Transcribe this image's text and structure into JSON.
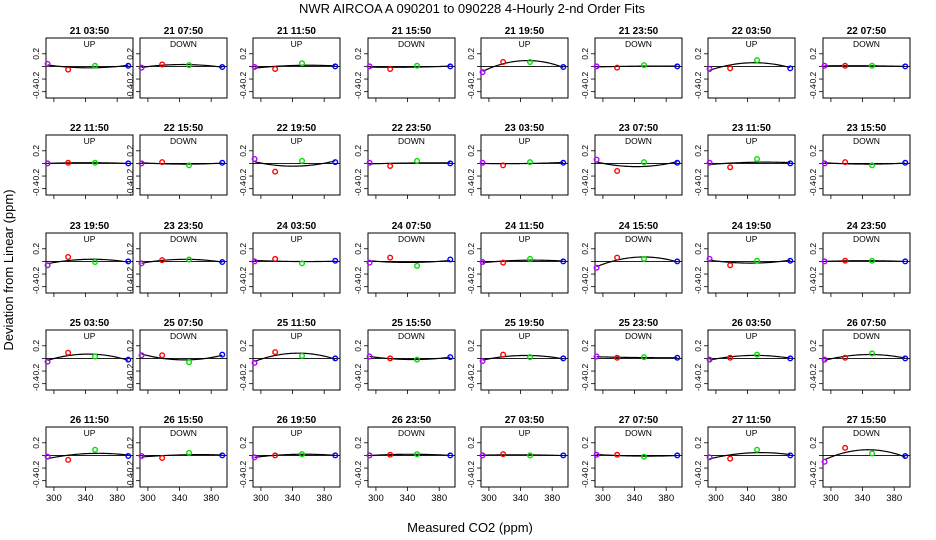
{
  "chart_data": {
    "type": "scatter",
    "title": "NWR   AIRCOA A   090201 to 090228   4-Hourly 2-nd Order Fits",
    "xlabel": "Measured CO2 (ppm)",
    "ylabel": "Deviation from Linear (ppm)",
    "xlim": [
      290,
      400
    ],
    "ylim": [
      -0.5,
      0.45
    ],
    "x_ticks": [
      "300",
      "340",
      "380"
    ],
    "x_tick_values": [
      300,
      340,
      380
    ],
    "y_ticks": [
      "0.2",
      "-0.2",
      "-0.4"
    ],
    "y_tick_values": [
      0.2,
      -0.2,
      -0.4
    ],
    "extra_y_tick": 0,
    "standard_x": [
      292,
      318,
      352,
      394
    ],
    "standard_colors": [
      "#b000ff",
      "#ff0000",
      "#00dd00",
      "#0000ff"
    ],
    "curve_color": "#000000",
    "panels": [
      {
        "title": "21 03:50",
        "direction": "UP",
        "y": [
          0.04,
          -0.05,
          0.01,
          0.01
        ]
      },
      {
        "title": "21 07:50",
        "direction": "DOWN",
        "y": [
          -0.02,
          0.03,
          0.02,
          -0.01
        ]
      },
      {
        "title": "21 11:50",
        "direction": "UP",
        "y": [
          -0.01,
          -0.04,
          0.05,
          0.0
        ]
      },
      {
        "title": "21 15:50",
        "direction": "DOWN",
        "y": [
          0.0,
          -0.04,
          0.01,
          0.0
        ]
      },
      {
        "title": "21 19:50",
        "direction": "UP",
        "y": [
          -0.09,
          0.07,
          0.07,
          -0.01
        ]
      },
      {
        "title": "21 23:50",
        "direction": "DOWN",
        "y": [
          0.0,
          -0.02,
          0.02,
          0.0
        ]
      },
      {
        "title": "22 03:50",
        "direction": "UP",
        "y": [
          -0.04,
          -0.03,
          0.1,
          -0.03
        ]
      },
      {
        "title": "22 07:50",
        "direction": "DOWN",
        "y": [
          0.01,
          0.01,
          0.01,
          0.0
        ]
      },
      {
        "title": "22 11:50",
        "direction": "UP",
        "y": [
          0.0,
          0.01,
          0.01,
          0.0
        ]
      },
      {
        "title": "22 15:50",
        "direction": "DOWN",
        "y": [
          0.0,
          0.02,
          -0.03,
          0.01
        ]
      },
      {
        "title": "22 19:50",
        "direction": "UP",
        "y": [
          0.07,
          -0.13,
          0.04,
          0.02
        ]
      },
      {
        "title": "22 23:50",
        "direction": "DOWN",
        "y": [
          0.01,
          -0.04,
          0.04,
          0.0
        ]
      },
      {
        "title": "23 03:50",
        "direction": "UP",
        "y": [
          0.01,
          -0.03,
          0.02,
          0.01
        ]
      },
      {
        "title": "23 07:50",
        "direction": "DOWN",
        "y": [
          0.06,
          -0.12,
          0.02,
          0.01
        ]
      },
      {
        "title": "23 11:50",
        "direction": "UP",
        "y": [
          0.01,
          -0.06,
          0.07,
          0.0
        ]
      },
      {
        "title": "23 15:50",
        "direction": "DOWN",
        "y": [
          0.0,
          0.02,
          -0.03,
          0.01
        ]
      },
      {
        "title": "23 19:50",
        "direction": "UP",
        "y": [
          -0.06,
          0.07,
          -0.01,
          0.0
        ]
      },
      {
        "title": "23 23:50",
        "direction": "DOWN",
        "y": [
          -0.03,
          0.02,
          0.03,
          -0.01
        ]
      },
      {
        "title": "24 03:50",
        "direction": "UP",
        "y": [
          0.0,
          0.04,
          -0.03,
          0.01
        ]
      },
      {
        "title": "24 07:50",
        "direction": "DOWN",
        "y": [
          -0.02,
          0.06,
          -0.07,
          0.03
        ]
      },
      {
        "title": "24 11:50",
        "direction": "UP",
        "y": [
          -0.01,
          -0.02,
          0.04,
          0.0
        ]
      },
      {
        "title": "24 15:50",
        "direction": "DOWN",
        "y": [
          -0.1,
          0.06,
          0.04,
          0.0
        ]
      },
      {
        "title": "24 19:50",
        "direction": "UP",
        "y": [
          0.04,
          -0.06,
          0.01,
          0.01
        ]
      },
      {
        "title": "24 23:50",
        "direction": "DOWN",
        "y": [
          0.0,
          0.01,
          0.01,
          0.0
        ]
      },
      {
        "title": "25 03:50",
        "direction": "UP",
        "y": [
          -0.05,
          0.09,
          0.03,
          -0.02
        ]
      },
      {
        "title": "25 07:50",
        "direction": "DOWN",
        "y": [
          0.05,
          0.05,
          -0.06,
          0.06
        ]
      },
      {
        "title": "25 11:50",
        "direction": "UP",
        "y": [
          -0.07,
          0.1,
          0.04,
          0.0
        ]
      },
      {
        "title": "25 15:50",
        "direction": "DOWN",
        "y": [
          0.03,
          0.0,
          -0.02,
          0.02
        ]
      },
      {
        "title": "25 19:50",
        "direction": "UP",
        "y": [
          -0.04,
          0.06,
          0.02,
          0.0
        ]
      },
      {
        "title": "25 23:50",
        "direction": "DOWN",
        "y": [
          0.03,
          0.01,
          0.02,
          0.01
        ]
      },
      {
        "title": "26 03:50",
        "direction": "UP",
        "y": [
          -0.02,
          0.01,
          0.06,
          0.0
        ]
      },
      {
        "title": "26 07:50",
        "direction": "DOWN",
        "y": [
          -0.02,
          0.01,
          0.08,
          0.0
        ]
      },
      {
        "title": "26 11:50",
        "direction": "UP",
        "y": [
          -0.02,
          -0.07,
          0.09,
          -0.01
        ]
      },
      {
        "title": "26 15:50",
        "direction": "DOWN",
        "y": [
          -0.01,
          -0.04,
          0.04,
          0.0
        ]
      },
      {
        "title": "26 19:50",
        "direction": "UP",
        "y": [
          -0.03,
          0.0,
          0.02,
          0.0
        ]
      },
      {
        "title": "26 23:50",
        "direction": "DOWN",
        "y": [
          0.0,
          0.01,
          0.02,
          0.0
        ]
      },
      {
        "title": "27 03:50",
        "direction": "UP",
        "y": [
          0.0,
          0.02,
          0.0,
          0.0
        ]
      },
      {
        "title": "27 07:50",
        "direction": "DOWN",
        "y": [
          0.01,
          0.01,
          -0.02,
          0.0
        ]
      },
      {
        "title": "27 11:50",
        "direction": "UP",
        "y": [
          -0.03,
          -0.05,
          0.09,
          0.0
        ]
      },
      {
        "title": "27 15:50",
        "direction": "DOWN",
        "y": [
          -0.1,
          0.12,
          0.03,
          -0.01
        ]
      }
    ]
  }
}
